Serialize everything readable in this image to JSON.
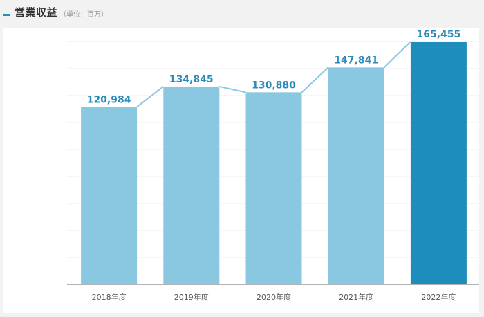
{
  "header": {
    "title": "営業収益",
    "unit": "（単位：百万）"
  },
  "colors": {
    "bar": "#8ac7e1",
    "bar_highlight": "#1d8dbc",
    "label": "#2a8ab9",
    "line": "#8ac7e1",
    "axis_text": "#555555"
  },
  "chart_data": {
    "type": "bar",
    "title": "",
    "xlabel": "",
    "ylabel": "",
    "categories": [
      "2018年度",
      "2019年度",
      "2020年度",
      "2021年度",
      "2022年度"
    ],
    "values": [
      120984,
      134845,
      130880,
      147841,
      165455
    ],
    "value_labels": [
      "120,984",
      "134,845",
      "130,880",
      "147,841",
      "165,455"
    ],
    "highlight_index": 4,
    "ylim": [
      0,
      165455
    ],
    "grid": true,
    "legend": "none"
  }
}
